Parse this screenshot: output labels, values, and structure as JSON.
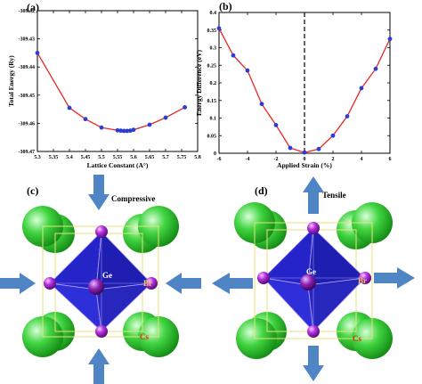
{
  "chart_data": [
    {
      "type": "line",
      "panel_label": "(a)",
      "xlabel": "Lattice Constant (A°)",
      "ylabel": "Total Energy (Ry)",
      "xlim": [
        5.3,
        5.8
      ],
      "ylim": [
        -309.47,
        -309.42
      ],
      "xticks": [
        "5.3",
        "5.35",
        "5.4",
        "5.45",
        "5.5",
        "5.55",
        "5.6",
        "5.65",
        "5.7",
        "5.75",
        "5.8"
      ],
      "yticks": [
        "-309.42",
        "-309.43",
        "-309.44",
        "-309.45",
        "-309.46",
        "-309.47"
      ],
      "x": [
        5.3,
        5.4,
        5.45,
        5.5,
        5.55,
        5.56,
        5.57,
        5.58,
        5.59,
        5.6,
        5.65,
        5.7,
        5.76
      ],
      "y": [
        -309.435,
        -309.4545,
        -309.4585,
        -309.4615,
        -309.4625,
        -309.4626,
        -309.4627,
        -309.4627,
        -309.4626,
        -309.4623,
        -309.4605,
        -309.458,
        -309.4543
      ],
      "line_color": "#e8261f",
      "marker_color": "#2d3cd4"
    },
    {
      "type": "line",
      "panel_label": "(b)",
      "xlabel": "Applied Strain (%)",
      "ylabel": "Energy Difference (eV)",
      "xlim": [
        -6,
        6
      ],
      "ylim": [
        0,
        0.4
      ],
      "xticks": [
        "-6",
        "-4",
        "-2",
        "0",
        "2",
        "4",
        "6"
      ],
      "yticks": [
        "0",
        "0.05",
        "0.1",
        "0.15",
        "0.2",
        "0.25",
        "0.3",
        "0.35",
        "0.4"
      ],
      "x": [
        -6,
        -5,
        -4,
        -3,
        -2,
        -1,
        0,
        1,
        2,
        3,
        4,
        5,
        6
      ],
      "y": [
        0.355,
        0.278,
        0.235,
        0.14,
        0.08,
        0.015,
        0.002,
        0.012,
        0.05,
        0.105,
        0.185,
        0.24,
        0.325
      ],
      "reference_line_x": 0,
      "line_color": "#e8261f",
      "marker_color": "#2d3cd4"
    }
  ],
  "structures": [
    {
      "panel_label": "(c)",
      "title": "Compressive",
      "labels": {
        "center": "Ge",
        "corner_right": "Br",
        "bottom": "Cs"
      }
    },
    {
      "panel_label": "(d)",
      "title": "Tensile",
      "labels": {
        "center": "Ge",
        "corner_right": "Br",
        "bottom": "Cs"
      }
    }
  ],
  "colors": {
    "cs_green": "#35c935",
    "br_purple": "#a21fd1",
    "octahedron_blue": "#2323c8",
    "arrow_blue": "#4f85c4"
  }
}
